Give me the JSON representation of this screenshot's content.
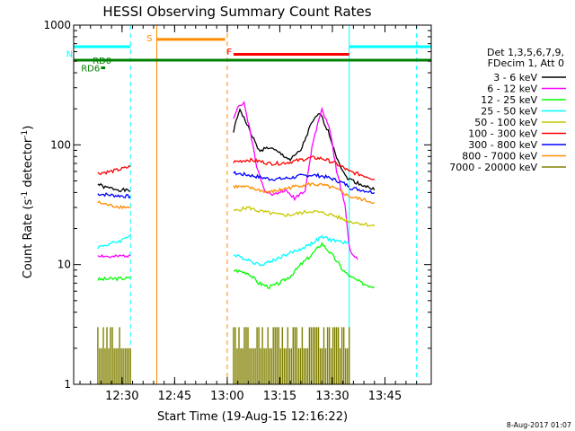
{
  "chart_data": {
    "type": "line",
    "title": "HESSI Observing Summary Count Rates",
    "xlabel": "Start Time (19-Aug-15 12:16:22)",
    "ylabel_main": "Count Rate (s",
    "ylabel_sup1": "-1",
    "ylabel_mid": " detector",
    "ylabel_sup2": "-1",
    "ylabel_end": ")",
    "ylabel": "Count Rate (s-1 detector-1)",
    "yscale": "log",
    "ylim": [
      1,
      1000
    ],
    "xlim_minutes": [
      12.27,
      13.97
    ],
    "x_ticks": [
      {
        "t": 12.5,
        "label": "12:30"
      },
      {
        "t": 12.75,
        "label": "12:45"
      },
      {
        "t": 13.0,
        "label": "13:00"
      },
      {
        "t": 13.25,
        "label": "13:15"
      },
      {
        "t": 13.5,
        "label": "13:30"
      },
      {
        "t": 13.75,
        "label": "13:45"
      }
    ],
    "y_ticks": [
      {
        "v": 1,
        "label": "1"
      },
      {
        "v": 10,
        "label": "10"
      },
      {
        "v": 100,
        "label": "100"
      },
      {
        "v": 1000,
        "label": "1000"
      }
    ],
    "legend_header": [
      "Det 1,3,5,6,7,9,",
      "FDecim 1, Att 0"
    ],
    "legend_position": "right",
    "timestamp": "8-Aug-2017 01:07",
    "flags": [
      {
        "label": "N",
        "color": "#00ffff",
        "segments": [
          [
            12.27,
            12.54
          ],
          [
            13.58,
            13.97
          ]
        ],
        "y": 660
      },
      {
        "label": "S",
        "color": "#ff8c00",
        "segments": [
          [
            12.665,
            12.99
          ]
        ],
        "y": 760
      },
      {
        "label": "F",
        "color": "#ff0000",
        "segments": [
          [
            13.03,
            13.58
          ]
        ],
        "y": 570
      },
      {
        "label": "RD0",
        "color": "#008000",
        "segments": [
          [
            12.27,
            13.97
          ]
        ],
        "y": 510
      },
      {
        "label": "RD6",
        "color": "#008000",
        "segments": [
          [
            12.4,
            12.42
          ]
        ],
        "y": 440
      }
    ],
    "vlines": [
      {
        "t": 12.27,
        "color": "#00ffff",
        "style": "solid"
      },
      {
        "t": 12.54,
        "color": "#00ffff",
        "style": "dashed"
      },
      {
        "t": 12.665,
        "color": "#ff8c00",
        "style": "solid"
      },
      {
        "t": 13.0,
        "color": "#ff8c00",
        "style": "dashed"
      },
      {
        "t": 13.58,
        "color": "#00ffff",
        "style": "solid"
      },
      {
        "t": 13.9,
        "color": "#00ffff",
        "style": "dashed"
      }
    ],
    "series": [
      {
        "name": "3 - 6 keV",
        "color": "#000000",
        "segments": [
          {
            "t": [
              12.385,
              12.42,
              12.46,
              12.5,
              12.54
            ],
            "v": [
              47,
              44,
              43,
              42,
              41
            ]
          },
          {
            "t": [
              13.03,
              13.06,
              13.1,
              13.15,
              13.2,
              13.25,
              13.3,
              13.35,
              13.4,
              13.44,
              13.48,
              13.52,
              13.56,
              13.58
            ],
            "v": [
              130,
              200,
              140,
              90,
              95,
              85,
              75,
              90,
              150,
              185,
              130,
              80,
              55,
              52
            ]
          },
          {
            "t": [
              13.58,
              13.62,
              13.66,
              13.7
            ],
            "v": [
              52,
              48,
              45,
              42
            ]
          }
        ]
      },
      {
        "name": "6 - 12 keV",
        "color": "#ff00ff",
        "segments": [
          {
            "t": [
              12.385,
              12.45,
              12.54
            ],
            "v": [
              12,
              11.5,
              12
            ]
          },
          {
            "t": [
              13.03,
              13.05,
              13.08,
              13.11,
              13.14,
              13.18,
              13.22,
              13.27,
              13.32,
              13.37,
              13.41,
              13.45,
              13.49,
              13.52,
              13.56,
              13.58,
              13.6,
              13.62
            ],
            "v": [
              170,
              210,
              220,
              130,
              65,
              42,
              38,
              42,
              36,
              42,
              110,
              200,
              130,
              60,
              32,
              14,
              12,
              11
            ]
          }
        ]
      },
      {
        "name": "12 - 25 keV",
        "color": "#00ff00",
        "segments": [
          {
            "t": [
              12.385,
              12.45,
              12.54
            ],
            "v": [
              7.5,
              7.6,
              7.7
            ]
          },
          {
            "t": [
              13.03,
              13.1,
              13.15,
              13.2,
              13.25,
              13.3,
              13.35,
              13.4,
              13.45,
              13.5,
              13.55,
              13.58
            ],
            "v": [
              9,
              8.5,
              7,
              6.5,
              7,
              8,
              10,
              12,
              15,
              12,
              9,
              8
            ]
          },
          {
            "t": [
              13.58,
              13.64,
              13.7
            ],
            "v": [
              8,
              7,
              6.5
            ]
          }
        ]
      },
      {
        "name": "25 - 50 keV",
        "color": "#00ffff",
        "segments": [
          {
            "t": [
              12.385,
              12.45,
              12.5,
              12.54
            ],
            "v": [
              14,
              15,
              16,
              18
            ]
          },
          {
            "t": [
              13.03,
              13.1,
              13.15,
              13.2,
              13.25,
              13.3,
              13.35,
              13.4,
              13.45,
              13.5,
              13.58
            ],
            "v": [
              12,
              11,
              10,
              10.5,
              11.5,
              12.5,
              13.5,
              15,
              17,
              16,
              15
            ]
          }
        ]
      },
      {
        "name": "50 - 100 keV",
        "color": "#c8c800",
        "segments": [
          {
            "t": [
              13.03,
              13.1,
              13.15,
              13.2,
              13.25,
              13.3,
              13.35,
              13.4,
              13.45,
              13.5,
              13.55,
              13.58
            ],
            "v": [
              28,
              30,
              28,
              27,
              26,
              26,
              27,
              28,
              27,
              26,
              24,
              23
            ]
          },
          {
            "t": [
              13.58,
              13.64,
              13.7
            ],
            "v": [
              23,
              22,
              21
            ]
          }
        ]
      },
      {
        "name": "100 - 300 keV",
        "color": "#ff0000",
        "segments": [
          {
            "t": [
              12.385,
              12.45,
              12.5,
              12.54
            ],
            "v": [
              58,
              60,
              63,
              66
            ]
          },
          {
            "t": [
              13.03,
              13.1,
              13.15,
              13.2,
              13.25,
              13.3,
              13.35,
              13.4,
              13.45,
              13.5,
              13.55,
              13.58
            ],
            "v": [
              72,
              75,
              73,
              70,
              70,
              72,
              75,
              78,
              77,
              72,
              65,
              60
            ]
          },
          {
            "t": [
              13.58,
              13.64,
              13.7
            ],
            "v": [
              60,
              56,
              52
            ]
          }
        ]
      },
      {
        "name": "300 - 800 keV",
        "color": "#0000ff",
        "segments": [
          {
            "t": [
              12.385,
              12.45,
              12.54
            ],
            "v": [
              39,
              38,
              37
            ]
          },
          {
            "t": [
              13.03,
              13.1,
              13.15,
              13.2,
              13.25,
              13.3,
              13.35,
              13.4,
              13.45,
              13.5,
              13.55,
              13.58
            ],
            "v": [
              58,
              56,
              54,
              52,
              52,
              53,
              55,
              56,
              55,
              52,
              48,
              45
            ]
          },
          {
            "t": [
              13.58,
              13.64,
              13.7
            ],
            "v": [
              44,
              42,
              40
            ]
          }
        ]
      },
      {
        "name": "800 - 7000 keV",
        "color": "#ff8c00",
        "segments": [
          {
            "t": [
              12.385,
              12.45,
              12.54
            ],
            "v": [
              33,
              31,
              30
            ]
          },
          {
            "t": [
              13.03,
              13.1,
              13.15,
              13.2,
              13.25,
              13.3,
              13.35,
              13.4,
              13.45,
              13.5,
              13.55,
              13.58
            ],
            "v": [
              45,
              44,
              42,
              40,
              42,
              44,
              46,
              47,
              46,
              44,
              40,
              37
            ]
          },
          {
            "t": [
              13.58,
              13.64,
              13.7
            ],
            "v": [
              37,
              35,
              33
            ]
          }
        ]
      },
      {
        "name": "7000 - 20000 keV",
        "color": "#808000",
        "segments": [
          {
            "t": [
              12.385,
              12.54
            ],
            "v": [
              2,
              2
            ]
          },
          {
            "t": [
              13.03,
              13.58
            ],
            "v": [
              2,
              2
            ]
          }
        ]
      }
    ]
  }
}
